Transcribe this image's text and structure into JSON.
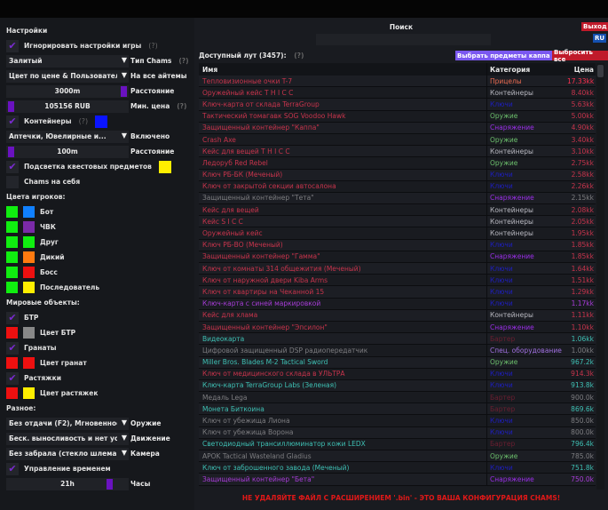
{
  "left": {
    "items": [
      {
        "type": "header",
        "label": "Настройки"
      },
      {
        "type": "checkbox",
        "label": "Игнорировать настройки игры",
        "checked": true,
        "help": "(?)"
      },
      {
        "type": "combo",
        "value": "Залитый",
        "label": "Тип Chams",
        "help": "(?)"
      },
      {
        "type": "combo",
        "value": "Цвет по цене & Пользовательс",
        "label": "На все айтемы"
      },
      {
        "type": "slider",
        "value": "3000m",
        "label": "Расстояние",
        "level": 1.0
      },
      {
        "type": "slider",
        "value": "105156 RUB",
        "label": "Мин. цена",
        "level": 0.0,
        "help": "(?)"
      },
      {
        "type": "checkbox",
        "label": "Контейнеры",
        "checked": true,
        "help": "(?)",
        "color": "#0a14ff"
      },
      {
        "type": "combo",
        "value": "Аптечки, Ювелирные и...",
        "label": "Включено"
      },
      {
        "type": "slider",
        "value": "100m",
        "label": "Расстояние",
        "level": 0.0
      },
      {
        "type": "checkbox",
        "label": "Подсветка квестовых предметов",
        "checked": true,
        "color": "#ffee00"
      },
      {
        "type": "checkbox",
        "label": "Chams на себя",
        "checked": false
      },
      {
        "type": "header",
        "label": "Цвета игроков:"
      },
      {
        "type": "colors",
        "colors": [
          "#10ee10",
          "#1080ff"
        ],
        "label": "Бот"
      },
      {
        "type": "colors",
        "colors": [
          "#10ee10",
          "#7a2aa8"
        ],
        "label": "ЧВК"
      },
      {
        "type": "colors",
        "colors": [
          "#10ee10",
          "#10ee10"
        ],
        "label": "Друг"
      },
      {
        "type": "colors",
        "colors": [
          "#10ee10",
          "#ff7a10"
        ],
        "label": "Дикий"
      },
      {
        "type": "colors",
        "colors": [
          "#10ee10",
          "#ee1010"
        ],
        "label": "Босс"
      },
      {
        "type": "colors",
        "colors": [
          "#10ee10",
          "#ffee00"
        ],
        "label": "Последователь"
      },
      {
        "type": "header",
        "label": "Мировые объекты:"
      },
      {
        "type": "checkbox",
        "label": "БТР",
        "checked": true
      },
      {
        "type": "colors",
        "colors": [
          "#ee1010",
          "#888888"
        ],
        "label": "Цвет БТР"
      },
      {
        "type": "checkbox",
        "label": "Гранаты",
        "checked": true
      },
      {
        "type": "colors",
        "colors": [
          "#ee1010",
          "#ee1010"
        ],
        "label": "Цвет гранат"
      },
      {
        "type": "checkbox",
        "label": "Растяжки",
        "checked": true
      },
      {
        "type": "colors",
        "colors": [
          "#ee1010",
          "#ffee00"
        ],
        "label": "Цвет растяжек"
      },
      {
        "type": "header",
        "label": "Разное:"
      },
      {
        "type": "combo",
        "value": "Без отдачи (F2), Мгновенное п",
        "label": "Оружие"
      },
      {
        "type": "combo",
        "value": "Беск. выносливость и нет уста",
        "label": "Движение"
      },
      {
        "type": "combo",
        "value": "Без забрала (стекло шлема)",
        "label": "Камера"
      },
      {
        "type": "checkbox",
        "label": "Управление временем",
        "checked": true
      },
      {
        "type": "slider",
        "value": "21h",
        "label": "Часы",
        "level": 0.875
      }
    ]
  },
  "header": {
    "search_label": "Поиск",
    "search_value": "",
    "exit": "Выход",
    "lang": "RU",
    "loot_label": "Доступный лут (3457):",
    "loot_help": "(?)",
    "select_kappa": "Выбрать предметы каппа",
    "drop_all": "Выбросить все"
  },
  "colors": {
    "red": "#c8344c",
    "teal": "#3ec0b4",
    "gray": "#7d7d80",
    "purple": "#a83cd8",
    "keys": "#1e1ec0",
    "barter": "#6a1e30",
    "containers": "#b8b8c0",
    "weapon": "#6cbf6c",
    "gear": "#9a2ee8",
    "scopes": "#e86a50",
    "special": "#a070e0"
  },
  "table": {
    "columns": [
      "Имя",
      "Категория",
      "Цена"
    ],
    "rows": [
      [
        "Тепловизионные очки T-7",
        "red",
        "Прицелы",
        "scopes",
        "17.33kk",
        "#ff3050"
      ],
      [
        "Оружейный кейс T H I C C",
        "red",
        "Контейнеры",
        "containers",
        "8.40kk",
        "#c8344c"
      ],
      [
        "Ключ-карта от склада TerraGroup",
        "red",
        "Ключи",
        "keys",
        "5.63kk",
        "#c8344c"
      ],
      [
        "Тактический томагавк SOG Voodoo Hawk",
        "red",
        "Оружие",
        "weapon",
        "5.00kk",
        "#c8344c"
      ],
      [
        "Защищенный контейнер \"Каппа\"",
        "red",
        "Снаряжение",
        "gear",
        "4.90kk",
        "#c8344c"
      ],
      [
        "Crash Axe",
        "red",
        "Оружие",
        "weapon",
        "3.40kk",
        "#c8344c"
      ],
      [
        "Кейс для вещей T H I C C",
        "red",
        "Контейнеры",
        "containers",
        "3.10kk",
        "#c8344c"
      ],
      [
        "Ледоруб Red Rebel",
        "red",
        "Оружие",
        "weapon",
        "2.75kk",
        "#c8344c"
      ],
      [
        "Ключ РБ-БК (Меченый)",
        "red",
        "Ключи",
        "keys",
        "2.58kk",
        "#c8344c"
      ],
      [
        "Ключ от закрытой секции автосалона",
        "red",
        "Ключи",
        "keys",
        "2.26kk",
        "#c8344c"
      ],
      [
        "Защищенный контейнер \"Тета\"",
        "gray",
        "Снаряжение",
        "gear",
        "2.15kk",
        "#7d7d80"
      ],
      [
        "Кейс для вещей",
        "red",
        "Контейнеры",
        "containers",
        "2.08kk",
        "#c8344c"
      ],
      [
        "Кейс S I C C",
        "red",
        "Контейнеры",
        "containers",
        "2.05kk",
        "#c8344c"
      ],
      [
        "Оружейный кейс",
        "red",
        "Контейнеры",
        "containers",
        "1.95kk",
        "#c8344c"
      ],
      [
        "Ключ РБ-ВО (Меченый)",
        "red",
        "Ключи",
        "keys",
        "1.85kk",
        "#c8344c"
      ],
      [
        "Защищенный контейнер \"Гамма\"",
        "red",
        "Снаряжение",
        "gear",
        "1.85kk",
        "#c8344c"
      ],
      [
        "Ключ от комнаты 314 общежития (Меченый)",
        "red",
        "Ключи",
        "keys",
        "1.64kk",
        "#c8344c"
      ],
      [
        "Ключ от наружной двери Kiba Arms",
        "red",
        "Ключи",
        "keys",
        "1.51kk",
        "#c8344c"
      ],
      [
        "Ключ от квартиры на Чеканной 15",
        "red",
        "Ключи",
        "keys",
        "1.29kk",
        "#c8344c"
      ],
      [
        "Ключ-карта с синей маркировкой",
        "purple",
        "Ключи",
        "keys",
        "1.17kk",
        "#a83cd8"
      ],
      [
        "Кейс для хлама",
        "red",
        "Контейнеры",
        "containers",
        "1.11kk",
        "#c8344c"
      ],
      [
        "Защищенный контейнер \"Эпсилон\"",
        "red",
        "Снаряжение",
        "gear",
        "1.10kk",
        "#c8344c"
      ],
      [
        "Видеокарта",
        "teal",
        "Бартер",
        "barter",
        "1.06kk",
        "#3ec0b4"
      ],
      [
        "Цифровой защищенный DSP радиопередатчик",
        "gray",
        "Спец. оборудование",
        "special",
        "1.00kk",
        "#7d7d80"
      ],
      [
        "Miller Bros. Blades M-2 Tactical Sword",
        "teal",
        "Оружие",
        "weapon",
        "967.2k",
        "#3ec0b4"
      ],
      [
        "Ключ от медицинского склада в УЛЬТРА",
        "red",
        "Ключи",
        "keys",
        "914.3k",
        "#c8344c"
      ],
      [
        "Ключ-карта TerraGroup Labs (Зеленая)",
        "teal",
        "Ключи",
        "keys",
        "913.8k",
        "#3ec0b4"
      ],
      [
        "Медаль Lega",
        "gray",
        "Бартер",
        "barter",
        "900.0k",
        "#7d7d80"
      ],
      [
        "Монета Биткоина",
        "teal",
        "Бартер",
        "barter",
        "869.6k",
        "#3ec0b4"
      ],
      [
        "Ключ от убежища Лиона",
        "gray",
        "Ключи",
        "keys",
        "850.0k",
        "#7d7d80"
      ],
      [
        "Ключ от убежища Ворона",
        "gray",
        "Ключи",
        "keys",
        "800.0k",
        "#7d7d80"
      ],
      [
        "Светодиодный трансиллюминатор кожи LEDX",
        "teal",
        "Бартер",
        "barter",
        "796.4k",
        "#3ec0b4"
      ],
      [
        "APOK Tactical Wasteland Gladius",
        "gray",
        "Оружие",
        "weapon",
        "785.0k",
        "#7d7d80"
      ],
      [
        "Ключ от заброшенного завода (Меченый)",
        "teal",
        "Ключи",
        "keys",
        "751.8k",
        "#3ec0b4"
      ],
      [
        "Защищенный контейнер \"Бета\"",
        "purple",
        "Снаряжение",
        "gear",
        "750.0k",
        "#a83cd8"
      ]
    ]
  },
  "footer": "НЕ УДАЛЯЙТЕ ФАЙЛ С РАСШИРЕНИЕМ '.bin' - ЭТО ВАША КОНФИГУРАЦИЯ CHAMS!"
}
